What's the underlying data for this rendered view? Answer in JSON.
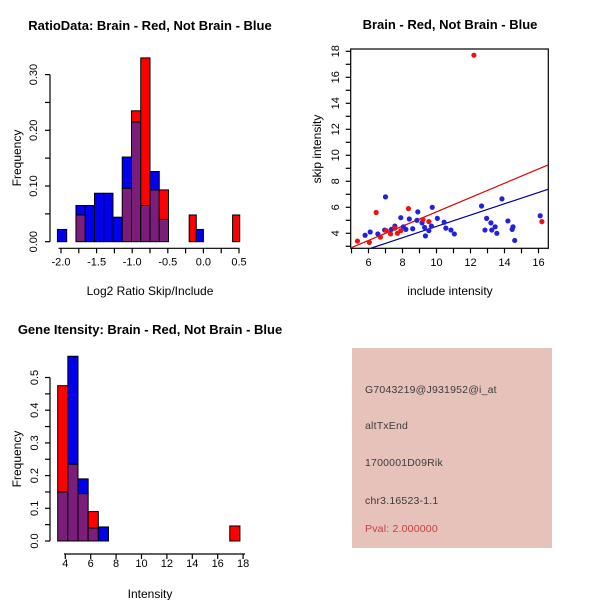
{
  "window": {
    "background": "#ffffff"
  },
  "colors": {
    "brain_red": "#ff0000",
    "not_brain_blue": "#0000ee",
    "overlap_purple": "#7b1e7b",
    "bar_border": "#000000",
    "scatter_blue_point": "#2222dd",
    "scatter_red_point": "#ee1111",
    "fit_line_red": "#dd0000",
    "fit_line_blue": "#000090",
    "axis": "#000000",
    "info_bg": "#e6c2ba",
    "info_text": "#3c3c3c",
    "pval_red": "#c54040"
  },
  "chart_data": [
    {
      "id": "ratio_hist",
      "type": "bar",
      "title": "RatioData: Brain - Red, Not Brain - Blue",
      "xlabel": "Log2 Ratio Skip/Include",
      "ylabel": "Frequency",
      "xlim": [
        -2.15,
        0.62
      ],
      "ylim": [
        0,
        0.345
      ],
      "x_ticks": [
        -2.0,
        -1.5,
        -1.0,
        -0.5,
        0.0,
        0.5
      ],
      "x_tick_labels": [
        "-2.0",
        "-1.5",
        "-1.0",
        "-0.5",
        "0.0",
        "0.5"
      ],
      "x_minor_step": 0.25,
      "y_ticks": [
        0.0,
        0.1,
        0.2,
        0.3
      ],
      "y_tick_labels": [
        "0.00",
        "0.10",
        "0.20",
        "0.30"
      ],
      "y_minor_step": 0.05,
      "legend_note": "red = Brain, blue = Not Brain, purple = overlap of both histograms",
      "bars": [
        {
          "x0": -2.05,
          "x1": -1.92,
          "blue": 0.022,
          "red": 0
        },
        {
          "x0": -1.79,
          "x1": -1.66,
          "blue": 0.065,
          "red": 0.048
        },
        {
          "x0": -1.66,
          "x1": -1.53,
          "blue": 0.065,
          "red": 0
        },
        {
          "x0": -1.53,
          "x1": -1.4,
          "blue": 0.087,
          "red": 0
        },
        {
          "x0": -1.4,
          "x1": -1.27,
          "blue": 0.087,
          "red": 0
        },
        {
          "x0": -1.27,
          "x1": -1.14,
          "blue": 0.044,
          "red": 0
        },
        {
          "x0": -1.14,
          "x1": -1.01,
          "blue": 0.152,
          "red": 0.096
        },
        {
          "x0": -1.01,
          "x1": -0.88,
          "blue": 0.215,
          "red": 0.235
        },
        {
          "x0": -0.88,
          "x1": -0.75,
          "blue": 0.065,
          "red": 0.33
        },
        {
          "x0": -0.75,
          "x1": -0.62,
          "blue": 0.126,
          "red": 0.093
        },
        {
          "x0": -0.62,
          "x1": -0.49,
          "blue": 0.04,
          "red": 0.093
        },
        {
          "x0": -0.2,
          "x1": -0.1,
          "blue": 0,
          "red": 0.048
        },
        {
          "x0": -0.1,
          "x1": 0.0,
          "blue": 0.022,
          "red": 0
        },
        {
          "x0": 0.41,
          "x1": 0.51,
          "blue": 0,
          "red": 0.048
        }
      ]
    },
    {
      "id": "intensity_scatter",
      "type": "scatter",
      "title": "Brain - Red, Not Brain - Blue",
      "xlabel": "include intensity",
      "ylabel": "skip intensity",
      "xlim": [
        4.95,
        16.58
      ],
      "ylim": [
        2.85,
        18.18
      ],
      "x_ticks": [
        6,
        8,
        10,
        12,
        14,
        16
      ],
      "y_ticks": [
        4,
        6,
        8,
        10,
        12,
        14,
        16,
        18
      ],
      "x_minor_step": 1,
      "y_minor_step": 1,
      "red_points": [
        [
          5.35,
          3.4
        ],
        [
          6.05,
          3.3
        ],
        [
          6.45,
          5.6
        ],
        [
          6.7,
          3.7
        ],
        [
          7.05,
          4.2
        ],
        [
          7.3,
          3.95
        ],
        [
          7.55,
          4.4
        ],
        [
          7.7,
          4.0
        ],
        [
          7.9,
          4.2
        ],
        [
          8.35,
          5.9
        ],
        [
          9.2,
          5.05
        ],
        [
          9.55,
          4.9
        ],
        [
          12.2,
          17.7
        ],
        [
          16.2,
          4.9
        ]
      ],
      "blue_points": [
        [
          5.8,
          3.85
        ],
        [
          6.1,
          4.1
        ],
        [
          6.55,
          3.95
        ],
        [
          6.95,
          4.25
        ],
        [
          7.0,
          6.8
        ],
        [
          7.35,
          4.3
        ],
        [
          7.55,
          4.55
        ],
        [
          7.9,
          5.2
        ],
        [
          8.05,
          4.5
        ],
        [
          8.2,
          4.3
        ],
        [
          8.4,
          5.1
        ],
        [
          8.6,
          4.35
        ],
        [
          8.85,
          5.0
        ],
        [
          8.9,
          5.65
        ],
        [
          9.15,
          4.8
        ],
        [
          9.3,
          4.45
        ],
        [
          9.35,
          3.8
        ],
        [
          9.55,
          4.2
        ],
        [
          9.7,
          4.55
        ],
        [
          9.75,
          6.0
        ],
        [
          10.05,
          5.15
        ],
        [
          10.45,
          4.85
        ],
        [
          10.55,
          4.4
        ],
        [
          10.85,
          4.25
        ],
        [
          11.05,
          3.95
        ],
        [
          12.65,
          6.1
        ],
        [
          12.85,
          4.25
        ],
        [
          12.95,
          5.15
        ],
        [
          13.2,
          4.8
        ],
        [
          13.25,
          4.25
        ],
        [
          13.45,
          4.5
        ],
        [
          13.55,
          4.0
        ],
        [
          13.85,
          6.65
        ],
        [
          14.2,
          4.95
        ],
        [
          14.5,
          4.5
        ],
        [
          14.45,
          4.3
        ],
        [
          14.6,
          3.45
        ],
        [
          16.1,
          5.35
        ]
      ],
      "red_line": {
        "slope": 0.55,
        "intercept": 0.15
      },
      "blue_line": {
        "slope": 0.435,
        "intercept": 0.18
      }
    },
    {
      "id": "gene_hist",
      "type": "bar",
      "title": "Gene Itensity: Brain - Red, Not Brain - Blue",
      "xlabel": "Intensity",
      "ylabel": "Frequency",
      "xlim": [
        3.3,
        18.4
      ],
      "ylim": [
        0,
        0.58
      ],
      "x_ticks": [
        4,
        6,
        8,
        10,
        12,
        14,
        16,
        18
      ],
      "x_tick_labels": [
        "4",
        "6",
        "8",
        "10",
        "12",
        "14",
        "16",
        "18"
      ],
      "x_minor_step": 0,
      "y_ticks": [
        0.0,
        0.1,
        0.2,
        0.3,
        0.4,
        0.5
      ],
      "y_tick_labels": [
        "0.0",
        "0.1",
        "0.2",
        "0.3",
        "0.4",
        "0.5"
      ],
      "y_minor_step": 0.05,
      "legend_note": "red = Brain, blue = Not Brain, purple = overlap of both histograms",
      "bars": [
        {
          "x0": 3.4,
          "x1": 4.2,
          "blue": 0.15,
          "red": 0.475
        },
        {
          "x0": 4.2,
          "x1": 5.0,
          "blue": 0.565,
          "red": 0.235
        },
        {
          "x0": 5.0,
          "x1": 5.8,
          "blue": 0.19,
          "red": 0.145
        },
        {
          "x0": 5.8,
          "x1": 6.6,
          "blue": 0.04,
          "red": 0.09
        },
        {
          "x0": 6.6,
          "x1": 7.4,
          "blue": 0.043,
          "red": 0
        },
        {
          "x0": 16.95,
          "x1": 17.75,
          "blue": 0,
          "red": 0.046
        }
      ]
    },
    {
      "id": "gene_info",
      "type": "table",
      "lines": [
        {
          "text": "G7043219@J931952@i_at",
          "role": "probe-id"
        },
        {
          "text": "altTxEnd",
          "role": "event-type"
        },
        {
          "text": "1700001D09Rik",
          "role": "gene-symbol"
        },
        {
          "text": "chr3.16523-1.1",
          "role": "locus"
        },
        {
          "text": "Pval: 2.000000",
          "role": "pvalue"
        }
      ]
    }
  ]
}
